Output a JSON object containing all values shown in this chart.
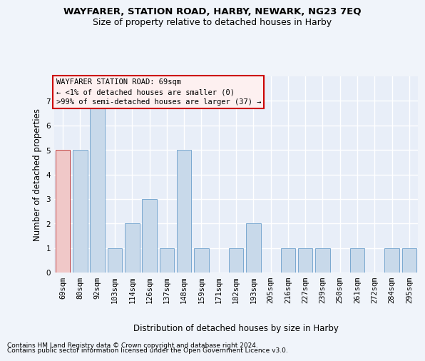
{
  "title": "WAYFARER, STATION ROAD, HARBY, NEWARK, NG23 7EQ",
  "subtitle": "Size of property relative to detached houses in Harby",
  "xlabel": "Distribution of detached houses by size in Harby",
  "ylabel": "Number of detached properties",
  "categories": [
    "69sqm",
    "80sqm",
    "92sqm",
    "103sqm",
    "114sqm",
    "126sqm",
    "137sqm",
    "148sqm",
    "159sqm",
    "171sqm",
    "182sqm",
    "193sqm",
    "205sqm",
    "216sqm",
    "227sqm",
    "239sqm",
    "250sqm",
    "261sqm",
    "272sqm",
    "284sqm",
    "295sqm"
  ],
  "values": [
    5,
    5,
    7,
    1,
    2,
    3,
    1,
    5,
    1,
    0,
    1,
    2,
    0,
    1,
    1,
    1,
    0,
    1,
    0,
    1,
    1
  ],
  "highlight_index": 0,
  "bar_color": "#c8d9ea",
  "highlight_color": "#f0c8c8",
  "bar_edge_color": "#7aa8d0",
  "highlight_edge_color": "#c04040",
  "annotation_box_text": "WAYFARER STATION ROAD: 69sqm\n← <1% of detached houses are smaller (0)\n>99% of semi-detached houses are larger (37) →",
  "annotation_box_color": "#fdf0f0",
  "annotation_edge_color": "#cc0000",
  "ylim": [
    0,
    8
  ],
  "yticks": [
    0,
    1,
    2,
    3,
    4,
    5,
    6,
    7
  ],
  "footer_line1": "Contains HM Land Registry data © Crown copyright and database right 2024.",
  "footer_line2": "Contains public sector information licensed under the Open Government Licence v3.0.",
  "background_color": "#f0f4fa",
  "plot_bg_color": "#e8eef8",
  "grid_color": "#ffffff",
  "title_fontsize": 9.5,
  "subtitle_fontsize": 9,
  "axis_label_fontsize": 8.5,
  "tick_fontsize": 7.5,
  "annotation_fontsize": 7.5,
  "footer_fontsize": 6.5
}
